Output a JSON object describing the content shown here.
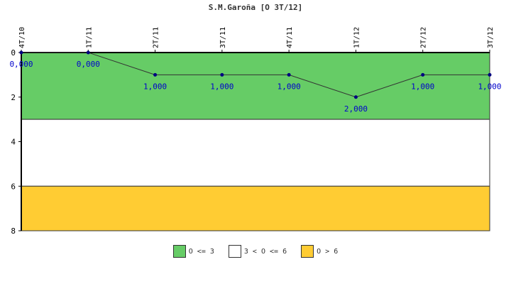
{
  "chart_data": {
    "type": "line",
    "title": "S.M.Garoña [O 3T/12]",
    "categories": [
      "4T/10",
      "1T/11",
      "2T/11",
      "3T/11",
      "4T/11",
      "1T/12",
      "2T/12",
      "3T/12"
    ],
    "series": [
      {
        "values": [
          0,
          0,
          1,
          1,
          1,
          2,
          1,
          1
        ],
        "labels": [
          "0,000",
          "0,000",
          "1,000",
          "1,000",
          "1,000",
          "2,000",
          "1,000",
          "1,000"
        ],
        "color": "#000080"
      }
    ],
    "ylim": [
      0,
      8
    ],
    "y_inverted": true,
    "yticks": [
      "0",
      "2",
      "4",
      "6",
      "8"
    ],
    "bands": [
      {
        "from": 0,
        "to": 3,
        "color": "#66cc66",
        "label": "O <= 3"
      },
      {
        "from": 3,
        "to": 6,
        "color": "#ffffff",
        "label": "3 < O <= 6"
      },
      {
        "from": 6,
        "to": 8,
        "color": "#ffcc33",
        "label": "O > 6"
      }
    ],
    "grid": false,
    "legend_position": "bottom",
    "xlabel": "",
    "ylabel": ""
  }
}
